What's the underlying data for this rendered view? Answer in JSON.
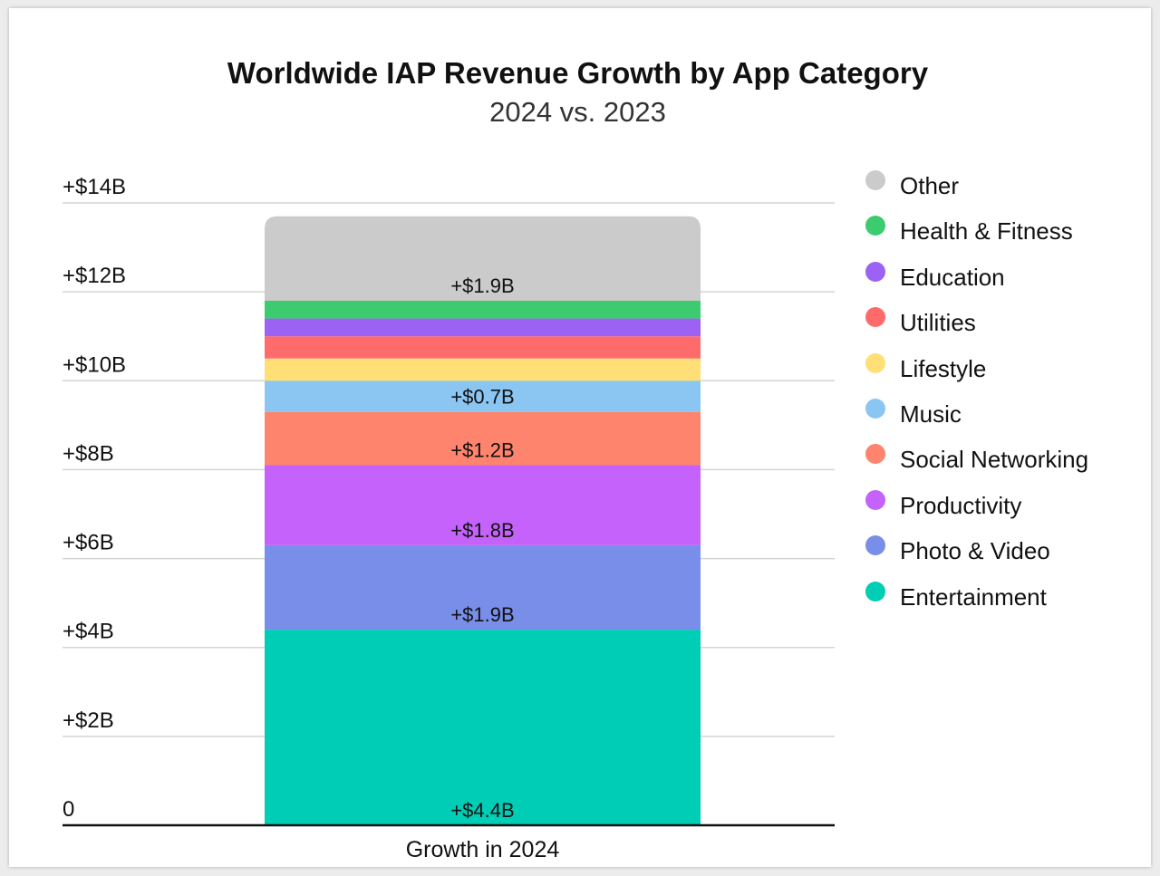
{
  "chart_data": {
    "type": "bar",
    "stacked": true,
    "title": "Worldwide IAP Revenue Growth by App Category",
    "subtitle": "2024 vs. 2023",
    "categories": [
      "Growth in 2024"
    ],
    "y_tick_labels": [
      "0",
      "+$2B",
      "+$4B",
      "+$6B",
      "+$8B",
      "+$10B",
      "+$12B",
      "+$14B"
    ],
    "y_ticks": [
      0,
      2,
      4,
      6,
      8,
      10,
      12,
      14
    ],
    "ylim": [
      0,
      14
    ],
    "grid": true,
    "legend_position": "right",
    "series": [
      {
        "name": "Entertainment",
        "values": [
          4.4
        ],
        "label": "+$4.4B",
        "color": "#00CDB5"
      },
      {
        "name": "Photo & Video",
        "values": [
          1.9
        ],
        "label": "+$1.9B",
        "color": "#788EE8"
      },
      {
        "name": "Productivity",
        "values": [
          1.8
        ],
        "label": "+$1.8B",
        "color": "#C462FB"
      },
      {
        "name": "Social Networking",
        "values": [
          1.2
        ],
        "label": "+$1.2B",
        "color": "#FF846D"
      },
      {
        "name": "Music",
        "values": [
          0.7
        ],
        "label": "+$0.7B",
        "color": "#8BC6F2"
      },
      {
        "name": "Lifestyle",
        "values": [
          0.5
        ],
        "label": "",
        "color": "#FFDF76"
      },
      {
        "name": "Utilities",
        "values": [
          0.5
        ],
        "label": "",
        "color": "#FF6B6B"
      },
      {
        "name": "Education",
        "values": [
          0.4
        ],
        "label": "",
        "color": "#9C62F4"
      },
      {
        "name": "Health & Fitness",
        "values": [
          0.4
        ],
        "label": "",
        "color": "#3DCB6F"
      },
      {
        "name": "Other",
        "values": [
          1.9
        ],
        "label": "+$1.9B",
        "color": "#CBCBCB"
      }
    ],
    "legend_order": [
      "Other",
      "Health & Fitness",
      "Education",
      "Utilities",
      "Lifestyle",
      "Music",
      "Social Networking",
      "Productivity",
      "Photo & Video",
      "Entertainment"
    ]
  }
}
